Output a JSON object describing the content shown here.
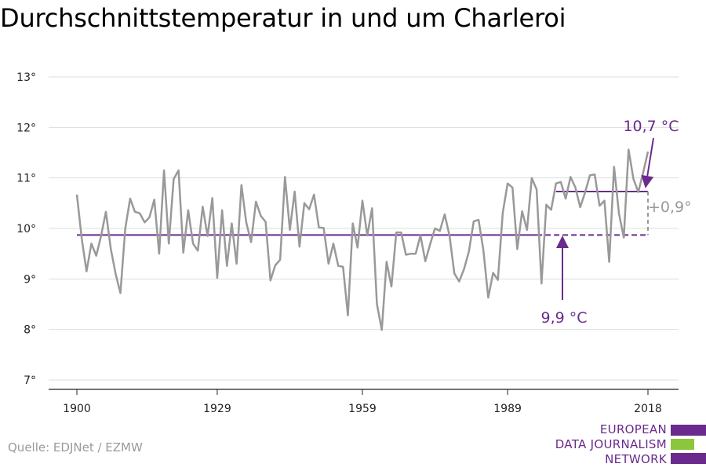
{
  "title": "Durchschnittstemperatur in und um Charleroi",
  "source": "Quelle: EDJNet / EZMW",
  "logo": {
    "lines": [
      "EUROPEAN",
      "DATA JOURNALISM",
      "NETWORK"
    ],
    "colors": [
      "#6a2a8e",
      "#8cc63f",
      "#6a2a8e"
    ]
  },
  "colors": {
    "series": "#999999",
    "reference": "#6a2a8e",
    "grid": "#dddddd",
    "axis": "#222222"
  },
  "chart_data": {
    "type": "line",
    "title": "Durchschnittstemperatur in und um Charleroi",
    "xlabel": "",
    "ylabel": "",
    "xlim": [
      1900,
      2018
    ],
    "ylim": [
      7,
      13
    ],
    "x_ticks": [
      1900,
      1929,
      1959,
      1989,
      2018
    ],
    "y_ticks": [
      7,
      8,
      9,
      10,
      11,
      12,
      13
    ],
    "y_tick_labels": [
      "7°",
      "8°",
      "9°",
      "10°",
      "11°",
      "12°",
      "13°"
    ],
    "grid": true,
    "series": [
      {
        "x": [
          1900,
          1901,
          1902,
          1903,
          1904,
          1905,
          1906,
          1907,
          1908,
          1909,
          1910,
          1911,
          1912,
          1913,
          1914,
          1915,
          1916,
          1917,
          1918,
          1919,
          1920,
          1921,
          1922,
          1923,
          1924,
          1925,
          1926,
          1927,
          1928,
          1929,
          1930,
          1931,
          1932,
          1933,
          1934,
          1935,
          1936,
          1937,
          1938,
          1939,
          1940,
          1941,
          1942,
          1943,
          1944,
          1945,
          1946,
          1947,
          1948,
          1949,
          1950,
          1951,
          1952,
          1953,
          1954,
          1955,
          1956,
          1957,
          1958,
          1959,
          1960,
          1961,
          1962,
          1963,
          1964,
          1965,
          1966,
          1967,
          1968,
          1969,
          1970,
          1971,
          1972,
          1973,
          1974,
          1975,
          1976,
          1977,
          1978,
          1979,
          1980,
          1981,
          1982,
          1983,
          1984,
          1985,
          1986,
          1987,
          1988,
          1989,
          1990,
          1991,
          1992,
          1993,
          1994,
          1995,
          1996,
          1997,
          1998,
          1999,
          2000,
          2001,
          2002,
          2003,
          2004,
          2005,
          2006,
          2007,
          2008,
          2009,
          2010,
          2011,
          2012,
          2013,
          2014,
          2015,
          2016,
          2017,
          2018
        ],
        "values": [
          10.67,
          9.8,
          9.15,
          9.7,
          9.46,
          9.85,
          10.33,
          9.6,
          9.1,
          8.72,
          10.0,
          10.59,
          10.33,
          10.3,
          10.12,
          10.22,
          10.57,
          9.5,
          11.15,
          9.7,
          10.98,
          11.15,
          9.52,
          10.36,
          9.7,
          9.56,
          10.43,
          9.85,
          10.6,
          9.02,
          10.36,
          9.26,
          10.1,
          9.3,
          10.86,
          10.12,
          9.73,
          10.53,
          10.25,
          10.13,
          8.97,
          9.27,
          9.38,
          11.02,
          9.97,
          10.73,
          9.64,
          10.5,
          10.38,
          10.67,
          10.02,
          10.01,
          9.3,
          9.7,
          9.26,
          9.24,
          8.28,
          10.1,
          9.62,
          10.55,
          9.86,
          10.4,
          8.5,
          7.99,
          9.34,
          8.85,
          9.92,
          9.92,
          9.48,
          9.5,
          9.5,
          9.86,
          9.35,
          9.69,
          10.0,
          9.95,
          10.28,
          9.85,
          9.11,
          8.95,
          9.2,
          9.54,
          10.14,
          10.17,
          9.57,
          8.63,
          9.12,
          8.98,
          10.31,
          10.89,
          10.81,
          9.59,
          10.34,
          9.97,
          11.0,
          10.77,
          8.91,
          10.47,
          10.37,
          10.89,
          10.92,
          10.59,
          11.02,
          10.81,
          10.42,
          10.71,
          11.05,
          11.07,
          10.45,
          10.55,
          9.34,
          11.22,
          10.3,
          9.82,
          11.56,
          10.98,
          10.72,
          11.1,
          11.52
        ]
      }
    ],
    "reference_lines": [
      {
        "label": "9,9 °C",
        "value": 9.87,
        "x_start": 1900,
        "x_solid_end": 1995,
        "x_end": 2018
      },
      {
        "label": "10,7 °C",
        "value": 10.73,
        "x_start": 1999,
        "x_end": 2018
      }
    ],
    "difference_label": "+0,9°"
  }
}
